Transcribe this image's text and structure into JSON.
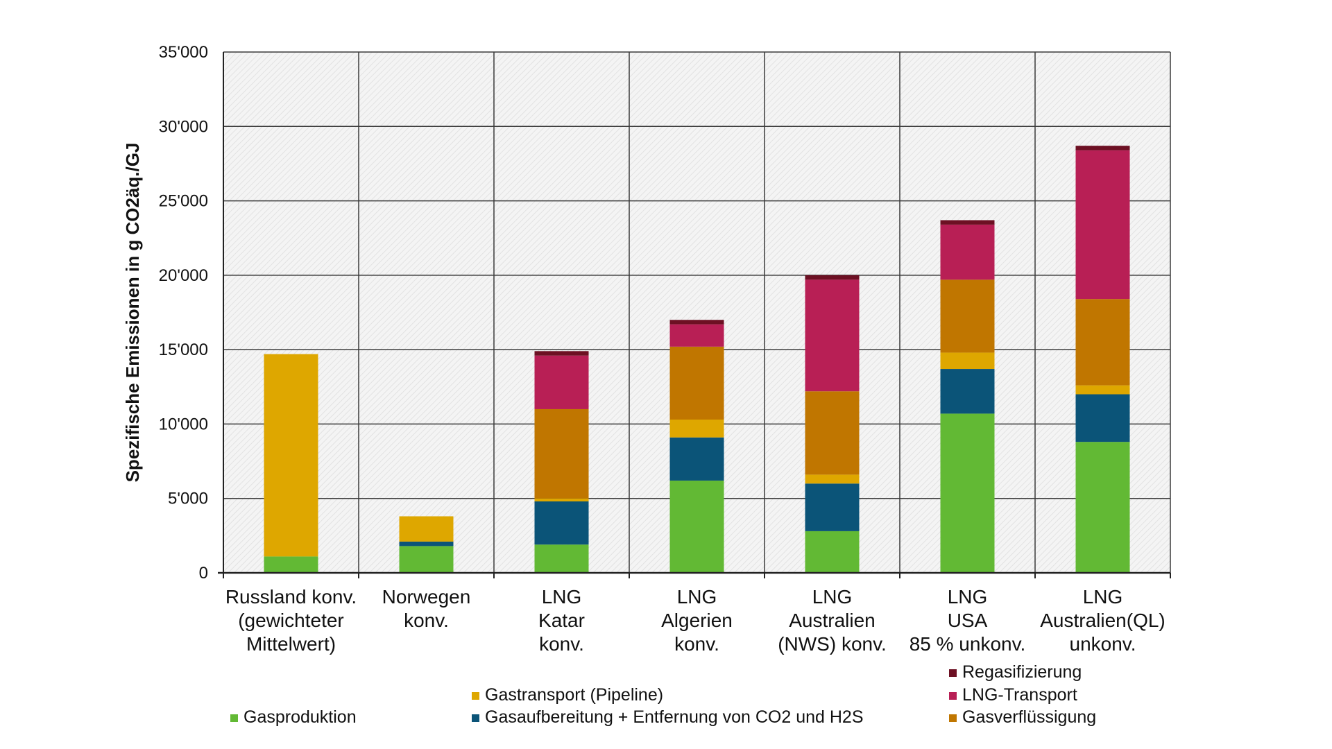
{
  "chart_data": {
    "type": "bar",
    "stacked": true,
    "ylabel": "Spezifische Emissionen in g CO2äq./GJ",
    "ylim": [
      0,
      35000
    ],
    "yticks": [
      "0",
      "5'000",
      "10'000",
      "15'000",
      "20'000",
      "25'000",
      "30'000",
      "35'000"
    ],
    "ytick_values": [
      0,
      5000,
      10000,
      15000,
      20000,
      25000,
      30000,
      35000
    ],
    "grid": true,
    "legend_position": "bottom",
    "categories": [
      [
        "Russland konv.",
        "(gewichteter",
        "Mittelwert)"
      ],
      [
        "Norwegen",
        "konv."
      ],
      [
        "LNG",
        "Katar",
        "konv."
      ],
      [
        "LNG",
        "Algerien",
        "konv."
      ],
      [
        "LNG",
        "Australien",
        "(NWS) konv."
      ],
      [
        "LNG",
        "USA",
        "85 % unkonv."
      ],
      [
        "LNG",
        "Australien(QL)",
        "unkonv."
      ]
    ],
    "series": [
      {
        "name": "Gasproduktion",
        "color": "#62b934",
        "values": [
          1100,
          1800,
          1900,
          6200,
          2800,
          10700,
          8800
        ]
      },
      {
        "name": "Gasaufbereitung + Entfernung von CO2 und H2S",
        "color": "#0b5478",
        "values": [
          0,
          300,
          2900,
          2900,
          3200,
          3000,
          3200
        ]
      },
      {
        "name": "Gastransport (Pipeline)",
        "color": "#dea700",
        "values": [
          13600,
          1700,
          200,
          1200,
          600,
          1100,
          600
        ]
      },
      {
        "name": "Gasverflüssigung",
        "color": "#c07600",
        "values": [
          0,
          0,
          6000,
          4900,
          5600,
          4900,
          5800
        ]
      },
      {
        "name": "LNG-Transport",
        "color": "#b81f55",
        "values": [
          0,
          0,
          3600,
          1500,
          7500,
          3700,
          10000
        ]
      },
      {
        "name": "Regasifizierung",
        "color": "#6d1023",
        "values": [
          0,
          0,
          300,
          300,
          300,
          300,
          300
        ]
      }
    ],
    "legend_layout": [
      [
        null,
        null,
        "Regasifizierung"
      ],
      [
        null,
        "Gastransport (Pipeline)",
        "LNG-Transport"
      ],
      [
        "Gasproduktion",
        "Gasaufbereitung + Entfernung von CO2 und H2S",
        "Gasverflüssigung"
      ]
    ]
  }
}
